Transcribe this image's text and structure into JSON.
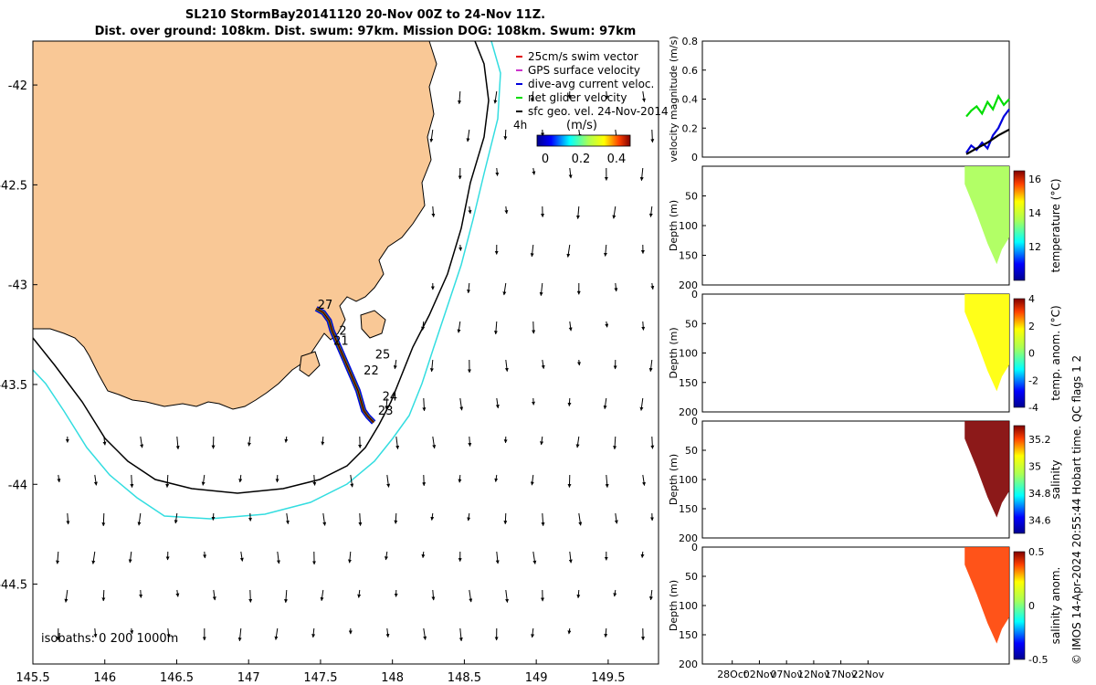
{
  "title": {
    "line1": "SL210 StormBay20141120 20-Nov 00Z to 24-Nov 11Z.",
    "line2": "Dist. over ground: 108km. Dist. swum: 97km. Mission DOG: 108km. Swum: 97km"
  },
  "side_text": "© IMOS 14-Apr-2024 20:55:44 Hobart time. QC flags 1 2",
  "colors": {
    "land": "#f9c896",
    "isobath_200": "#000000",
    "isobath_1000": "#33dde0",
    "swim": "#e00000",
    "gps": "#cc33cc",
    "dive_avg": "#0000dd",
    "net": "#00dd00",
    "sfc_geo": "#000000"
  },
  "chart_data": [
    {
      "type": "map",
      "xticks": [
        "145.5",
        "146",
        "146.5",
        "147",
        "147.5",
        "148",
        "148.5",
        "149",
        "149.5"
      ],
      "yticks": [
        "-42",
        "-42.5",
        "-43",
        "-43.5",
        "-44",
        "-44.5"
      ],
      "xlim": [
        145.5,
        149.85
      ],
      "ylim": [
        -44.9,
        -41.78
      ],
      "legend": {
        "position": "top-right",
        "items": [
          {
            "label": "25cm/s swim vector",
            "color": "#e00000"
          },
          {
            "label": "GPS surface velocity",
            "color": "#cc33cc"
          },
          {
            "label": "dive-avg current veloc.",
            "color": "#0000dd"
          },
          {
            "label": "net glider velocity",
            "color": "#00dd00"
          },
          {
            "label": "sfc geo. vel. 24-Nov-2014",
            "color": "#000000"
          }
        ],
        "extra_label": "4h",
        "colorbar_label": "(m/s)",
        "colorbar_ticks": [
          "0",
          "0.2",
          "0.4"
        ]
      },
      "isobath_label": "isobaths: 0   200  1000m",
      "day_labels": [
        {
          "text": "27",
          "lon": 147.48,
          "lat": -43.12
        },
        {
          "text": "21",
          "lon": 147.59,
          "lat": -43.3
        },
        {
          "text": "2",
          "lon": 147.63,
          "lat": -43.25
        },
        {
          "text": "25",
          "lon": 147.88,
          "lat": -43.37
        },
        {
          "text": "22",
          "lon": 147.8,
          "lat": -43.45
        },
        {
          "text": "24",
          "lon": 147.93,
          "lat": -43.58
        },
        {
          "text": "23",
          "lon": 147.9,
          "lat": -43.65
        }
      ],
      "glider_track": [
        [
          147.47,
          -43.12
        ],
        [
          147.52,
          -43.14
        ],
        [
          147.56,
          -43.18
        ],
        [
          147.58,
          -43.23
        ],
        [
          147.61,
          -43.28
        ],
        [
          147.64,
          -43.33
        ],
        [
          147.67,
          -43.38
        ],
        [
          147.7,
          -43.43
        ],
        [
          147.73,
          -43.48
        ],
        [
          147.76,
          -43.53
        ],
        [
          147.78,
          -43.58
        ],
        [
          147.8,
          -43.63
        ],
        [
          147.83,
          -43.66
        ],
        [
          147.87,
          -43.69
        ]
      ]
    },
    {
      "type": "line",
      "ylabel": "velocity magnitude (m/s)",
      "ylim": [
        0,
        0.8
      ],
      "yticks": [
        "0",
        "0.2",
        "0.4",
        "0.6",
        "0.8"
      ],
      "x_range_days": [
        0,
        56.5
      ],
      "series": [
        {
          "color": "#00dd00",
          "x": [
            48.6,
            49.5,
            50.5,
            51.5,
            52.5,
            53.5,
            54.5,
            55.5,
            56.5
          ],
          "values": [
            0.28,
            0.32,
            0.35,
            0.3,
            0.38,
            0.33,
            0.42,
            0.36,
            0.4
          ]
        },
        {
          "color": "#0000dd",
          "x": [
            48.6,
            49.5,
            50.5,
            51.5,
            52.5,
            53.5,
            54.5,
            55.5,
            56.5
          ],
          "values": [
            0.03,
            0.08,
            0.05,
            0.1,
            0.06,
            0.15,
            0.2,
            0.28,
            0.33
          ]
        },
        {
          "color": "#000000",
          "x": [
            48.6,
            50.5,
            52.5,
            54.5,
            56.5
          ],
          "values": [
            0.02,
            0.06,
            0.1,
            0.15,
            0.19
          ]
        }
      ]
    },
    {
      "type": "heatmap",
      "ylabel": "Depth (m)",
      "ylim": [
        0,
        200
      ],
      "yticks": [
        "50",
        "100",
        "150",
        "200"
      ],
      "colorbar_label": "temperature (°C)",
      "colorbar_ticks": [
        "12",
        "14",
        "16"
      ],
      "colorbar_range": [
        10,
        16.5
      ],
      "field_value": 13
    },
    {
      "type": "heatmap",
      "ylabel": "Depth (m)",
      "ylim": [
        0,
        200
      ],
      "yticks": [
        "0",
        "50",
        "100",
        "150",
        "200"
      ],
      "colorbar_label": "temp. anom. (°C)",
      "colorbar_ticks": [
        "-4",
        "-2",
        "0",
        "2",
        "4"
      ],
      "colorbar_range": [
        -4,
        4
      ],
      "field_value": 1
    },
    {
      "type": "heatmap",
      "ylabel": "Depth (m)",
      "ylim": [
        0,
        200
      ],
      "yticks": [
        "0",
        "50",
        "100",
        "150",
        "200"
      ],
      "colorbar_label": "salinity",
      "colorbar_ticks": [
        "34.6",
        "34.8",
        "35",
        "35.2"
      ],
      "colorbar_range": [
        34.5,
        35.3
      ],
      "field_value": 35.25
    },
    {
      "type": "heatmap",
      "ylabel": "Depth (m)",
      "ylim": [
        0,
        200
      ],
      "yticks": [
        "0",
        "50",
        "100",
        "150",
        "200"
      ],
      "colorbar_label": "salinity anom.",
      "colorbar_ticks": [
        "-0.5",
        "0",
        "0.5"
      ],
      "colorbar_range": [
        -0.5,
        0.5
      ],
      "field_value": 0.3,
      "xticks": [
        "28Oct",
        "02Nov",
        "07Nov",
        "12Nov",
        "17Nov",
        "22Nov"
      ]
    }
  ]
}
